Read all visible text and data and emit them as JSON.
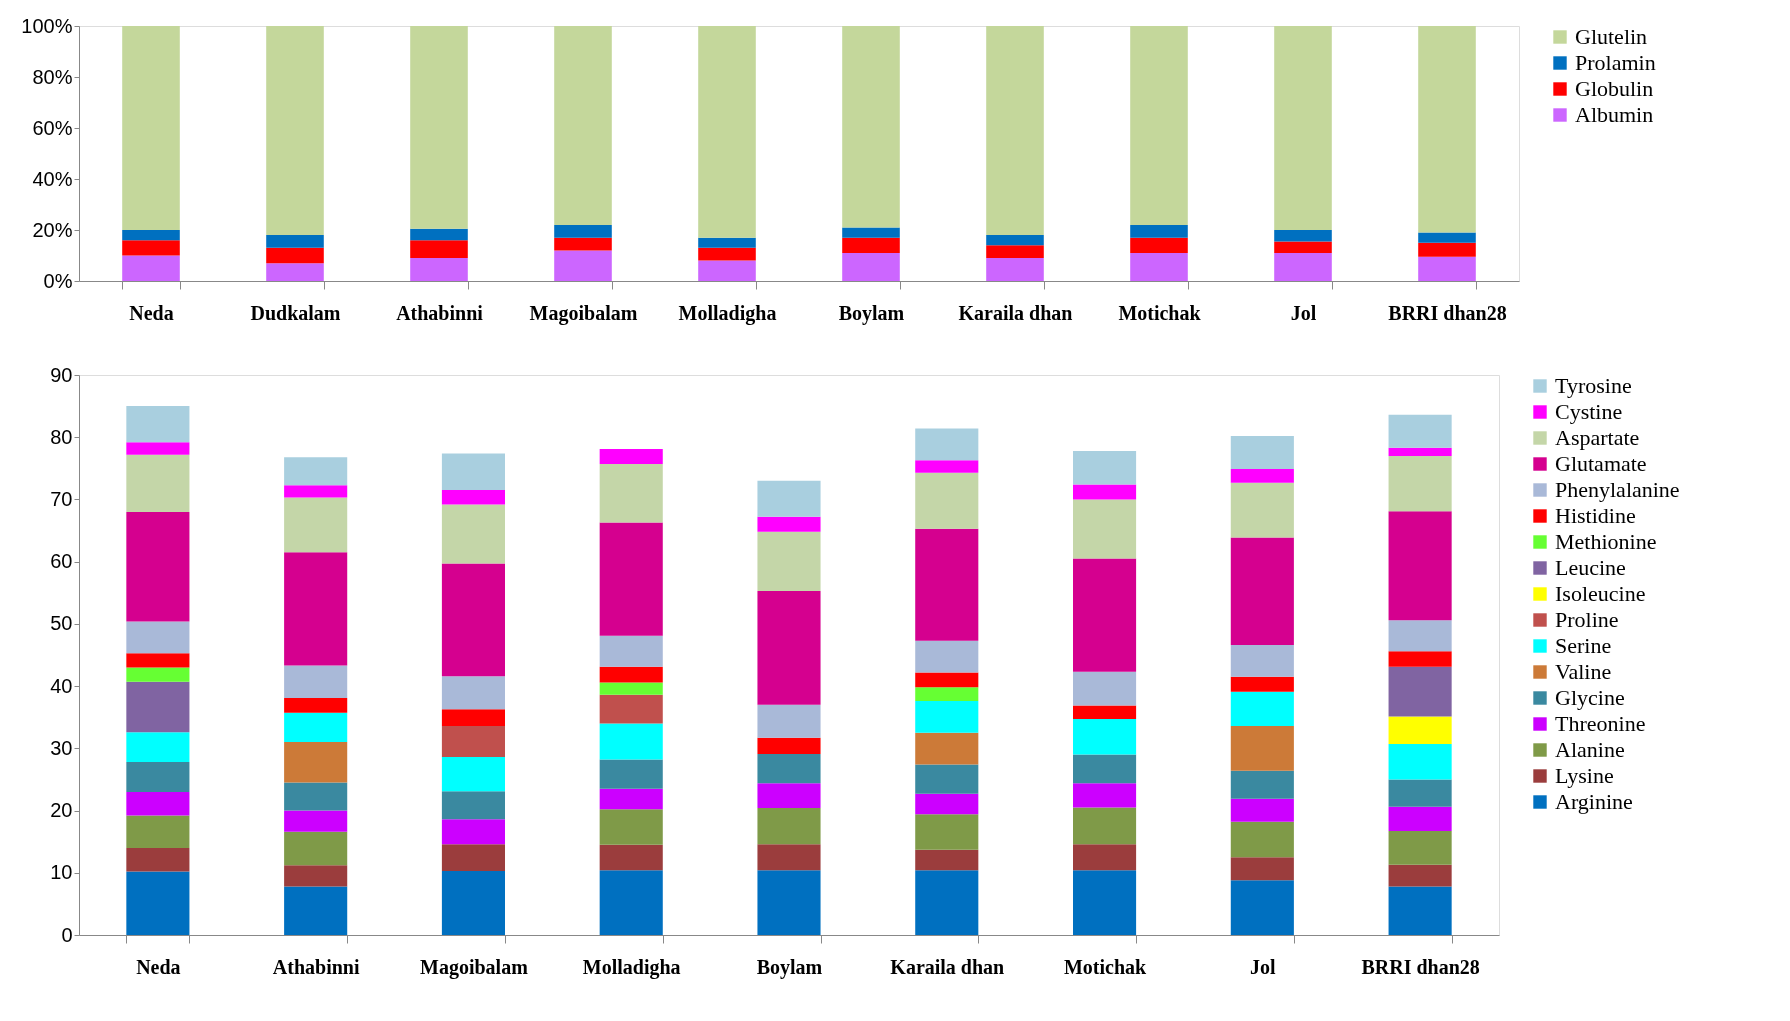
{
  "chart_data": [
    {
      "type": "bar",
      "stacked": true,
      "legend": "right",
      "grid": false,
      "categories": [
        "Neda",
        "Dudkalam",
        "Athabinni",
        "Magoibalam",
        "Molladigha",
        "Boylam",
        "Karaila dhan",
        "Motichak",
        "Jol",
        "BRRI dhan28"
      ],
      "ylim": [
        0,
        100
      ],
      "yticks": [
        {
          "value": 0,
          "label": "0%"
        },
        {
          "value": 20,
          "label": "20%"
        },
        {
          "value": 40,
          "label": "40%"
        },
        {
          "value": 60,
          "label": "60%"
        },
        {
          "value": 80,
          "label": "80%"
        },
        {
          "value": 100,
          "label": "100%"
        }
      ],
      "series": [
        {
          "name": "Albumin",
          "color": "#cc66ff",
          "values": [
            10,
            7,
            9,
            12,
            8,
            11,
            9,
            11,
            11,
            9.5
          ]
        },
        {
          "name": "Globulin",
          "color": "#ff0000",
          "values": [
            6,
            6,
            7,
            5,
            5,
            6,
            5,
            6,
            4.5,
            5.5
          ]
        },
        {
          "name": "Prolamin",
          "color": "#0070c0",
          "values": [
            4,
            5,
            4.5,
            5,
            4,
            4,
            4,
            5,
            4.5,
            4
          ]
        },
        {
          "name": "Glutelin",
          "color": "#c4d79b",
          "values": [
            80,
            82,
            79.5,
            78,
            83,
            79,
            82,
            78,
            80,
            81
          ]
        }
      ]
    },
    {
      "type": "bar",
      "stacked": true,
      "legend": "right",
      "grid": false,
      "categories": [
        "Neda",
        "Athabinni",
        "Magoibalam",
        "Molladigha",
        "Boylam",
        "Karaila dhan",
        "Motichak",
        "Jol",
        "BRRI dhan28"
      ],
      "ylim": [
        0,
        90
      ],
      "yticks": [
        0,
        10,
        20,
        30,
        40,
        50,
        60,
        70,
        80,
        90
      ],
      "series": [
        {
          "name": "Arginine",
          "color": "#0070c0",
          "values": [
            10.2,
            7.8,
            10.3,
            10.4,
            10.4,
            10.4,
            10.4,
            8.8,
            7.8
          ]
        },
        {
          "name": "Lysine",
          "color": "#9b3d3d",
          "values": [
            3.8,
            3.4,
            4.3,
            4.1,
            4.2,
            3.3,
            4.2,
            3.7,
            3.5
          ]
        },
        {
          "name": "Alanine",
          "color": "#7f9a48",
          "values": [
            5.2,
            5.4,
            null,
            5.7,
            5.8,
            5.7,
            5.9,
            5.7,
            5.4
          ]
        },
        {
          "name": "Threonine",
          "color": "#cc00ff",
          "values": [
            3.8,
            3.4,
            4.0,
            3.3,
            4.0,
            3.3,
            3.9,
            3.7,
            3.9
          ]
        },
        {
          "name": "Glycine",
          "color": "#3a89a0",
          "values": [
            4.8,
            4.5,
            4.5,
            4.7,
            4.7,
            4.7,
            4.6,
            4.5,
            4.4
          ]
        },
        {
          "name": "Valine",
          "color": "#cc7a38",
          "values": [
            null,
            6.5,
            null,
            null,
            null,
            5.1,
            null,
            7.2,
            null
          ]
        },
        {
          "name": "Serine",
          "color": "#00ffff",
          "values": [
            4.8,
            4.7,
            5.5,
            5.8,
            null,
            5.1,
            5.7,
            5.5,
            5.7
          ]
        },
        {
          "name": "Proline",
          "color": "#c0504d",
          "values": [
            null,
            null,
            5.0,
            4.6,
            null,
            null,
            null,
            null,
            null
          ]
        },
        {
          "name": "Isoleucine",
          "color": "#ffff00",
          "values": [
            null,
            null,
            null,
            null,
            null,
            null,
            null,
            null,
            4.4
          ]
        },
        {
          "name": "Leucine",
          "color": "#8064a2",
          "values": [
            8.1,
            null,
            null,
            null,
            null,
            null,
            null,
            null,
            8.0
          ]
        },
        {
          "name": "Methionine",
          "color": "#66ff33",
          "values": [
            2.3,
            null,
            null,
            2.0,
            null,
            2.2,
            null,
            null,
            null
          ]
        },
        {
          "name": "Histidine",
          "color": "#ff0000",
          "values": [
            2.3,
            2.4,
            2.7,
            2.5,
            2.6,
            2.4,
            2.2,
            2.4,
            2.5
          ]
        },
        {
          "name": "Phenylalanine",
          "color": "#a9b9d8",
          "values": [
            5.1,
            5.2,
            5.3,
            5.0,
            5.3,
            5.1,
            5.4,
            5.1,
            5.0
          ]
        },
        {
          "name": "Glutamate",
          "color": "#d5008f",
          "values": [
            17.6,
            18.2,
            18.1,
            18.2,
            18.3,
            18.0,
            18.2,
            17.3,
            17.5
          ]
        },
        {
          "name": "Aspartate",
          "color": "#c4d6a8",
          "values": [
            9.2,
            8.8,
            9.5,
            9.4,
            9.5,
            9.0,
            9.5,
            8.8,
            8.9
          ]
        },
        {
          "name": "Cystine",
          "color": "#ff00ff",
          "values": [
            2.0,
            2.0,
            2.3,
            2.4,
            2.4,
            2.0,
            2.4,
            2.2,
            1.3
          ]
        },
        {
          "name": "Tyrosine",
          "color": "#a9cfdf",
          "values": [
            5.8,
            4.5,
            5.9,
            null,
            5.8,
            5.1,
            5.4,
            5.3,
            5.3
          ]
        }
      ]
    }
  ]
}
